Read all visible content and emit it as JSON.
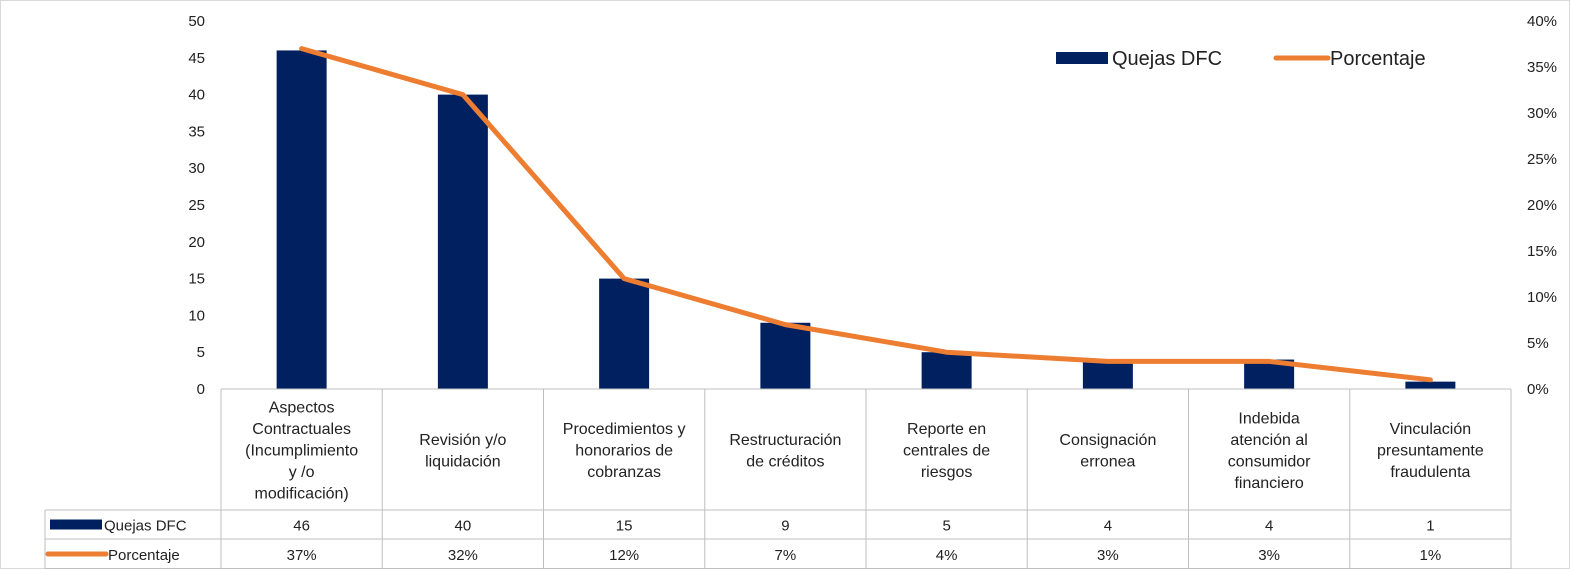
{
  "chart_data": {
    "type": "bar",
    "categories": [
      [
        "Aspectos",
        "Contractuales",
        "(Incumplimiento",
        "y /o",
        "modificación)"
      ],
      [
        "Revisión y/o",
        "liquidación"
      ],
      [
        "Procedimientos y",
        "honorarios de",
        "cobranzas"
      ],
      [
        "Restructuración",
        "de créditos"
      ],
      [
        "Reporte en",
        "centrales de",
        "riesgos"
      ],
      [
        "Consignación",
        "erronea"
      ],
      [
        "Indebida",
        "atención al",
        "consumidor",
        "financiero"
      ],
      [
        "Vinculación",
        "presuntamente",
        "fraudulenta"
      ]
    ],
    "series": [
      {
        "name": "Quejas DFC",
        "type": "bar",
        "axis": "left",
        "color": "#002060",
        "values": [
          46,
          40,
          15,
          9,
          5,
          4,
          4,
          1
        ],
        "labels": [
          "46",
          "40",
          "15",
          "9",
          "5",
          "4",
          "4",
          "1"
        ]
      },
      {
        "name": "Porcentaje",
        "type": "line",
        "axis": "right",
        "color": "#ED7D31",
        "values": [
          0.37,
          0.32,
          0.12,
          0.07,
          0.04,
          0.03,
          0.03,
          0.01
        ],
        "labels": [
          "37%",
          "32%",
          "12%",
          "7%",
          "4%",
          "3%",
          "3%",
          "1%"
        ]
      }
    ],
    "y_left": {
      "min": 0,
      "max": 50,
      "ticks": [
        "0",
        "5",
        "10",
        "15",
        "20",
        "25",
        "30",
        "35",
        "40",
        "45",
        "50"
      ]
    },
    "y_right": {
      "min": 0,
      "max": 0.4,
      "ticks": [
        "0%",
        "5%",
        "10%",
        "15%",
        "20%",
        "25%",
        "30%",
        "35%",
        "40%"
      ]
    },
    "legend": {
      "position": "top-right"
    },
    "data_table": true,
    "grid": false
  }
}
